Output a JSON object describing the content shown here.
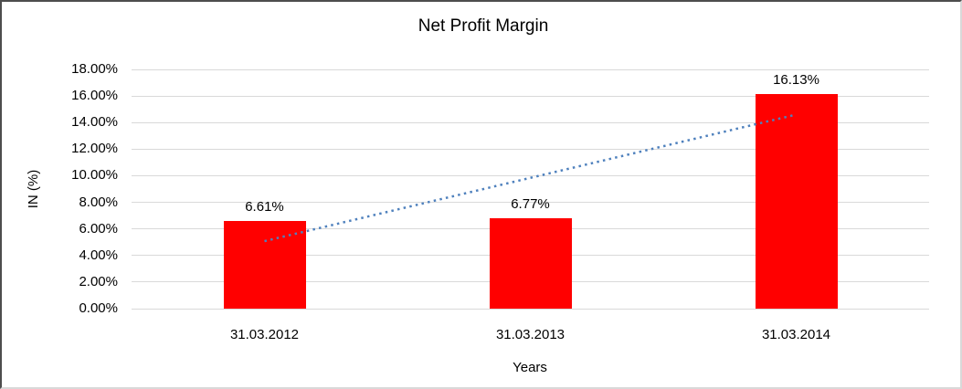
{
  "chart_data": {
    "type": "bar",
    "title": "Net Profit Margin",
    "xlabel": "Years",
    "ylabel": "IN (%)",
    "categories": [
      "31.03.2012",
      "31.03.2013",
      "31.03.2014"
    ],
    "values": [
      6.61,
      6.77,
      16.13
    ],
    "data_labels": [
      "6.61%",
      "6.77%",
      "16.13%"
    ],
    "ylim": [
      0,
      18
    ],
    "ytick_step": 2,
    "ytick_labels": [
      "18.00%",
      "16.00%",
      "14.00%",
      "12.00%",
      "10.00%",
      "8.00%",
      "6.00%",
      "4.00%",
      "2.00%",
      "0.00%"
    ],
    "grid": true,
    "legend": "none",
    "colors": {
      "bar": "#FF0000",
      "trendline": "#4F81BD",
      "gridline": "#D9D9D9",
      "text": "#000000",
      "background": "#FFFFFF"
    },
    "trendline": {
      "type": "linear",
      "style": "dotted",
      "start_value_pct": 5.08,
      "end_value_pct": 14.6
    }
  }
}
